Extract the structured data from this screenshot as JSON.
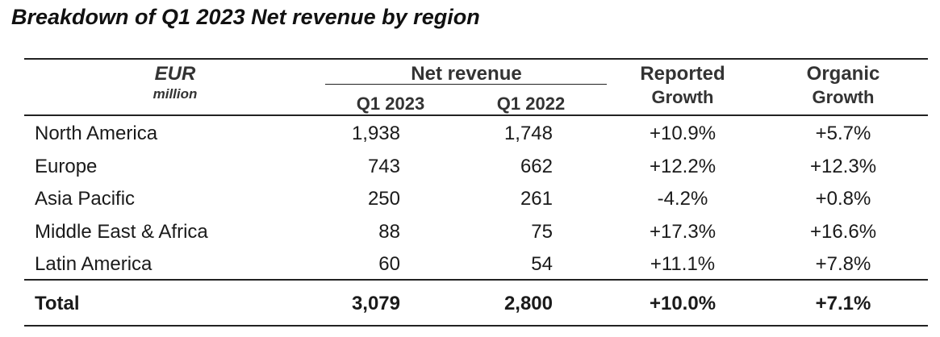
{
  "title": "Breakdown of Q1 2023 Net revenue by region",
  "header": {
    "currency": "EUR",
    "unit": "million",
    "net_revenue": "Net revenue",
    "q1_2023": "Q1 2023",
    "q1_2022": "Q1 2022",
    "reported_line1": "Reported",
    "reported_line2": "Growth",
    "organic_line1": "Organic",
    "organic_line2": "Growth"
  },
  "rows": [
    {
      "region": "North America",
      "q1_2023": "1,938",
      "q1_2022": "1,748",
      "reported": "+10.9%",
      "organic": "+5.7%"
    },
    {
      "region": "Europe",
      "q1_2023": "743",
      "q1_2022": "662",
      "reported": "+12.2%",
      "organic": "+12.3%"
    },
    {
      "region": "Asia Pacific",
      "q1_2023": "250",
      "q1_2022": "261",
      "reported": "-4.2%",
      "organic": "+0.8%"
    },
    {
      "region": "Middle East & Africa",
      "q1_2023": "88",
      "q1_2022": "75",
      "reported": "+17.3%",
      "organic": "+16.6%"
    },
    {
      "region": "Latin America",
      "q1_2023": "60",
      "q1_2022": "54",
      "reported": "+11.1%",
      "organic": "+7.8%"
    }
  ],
  "total": {
    "region": "Total",
    "q1_2023": "3,079",
    "q1_2022": "2,800",
    "reported": "+10.0%",
    "organic": "+7.1%"
  }
}
